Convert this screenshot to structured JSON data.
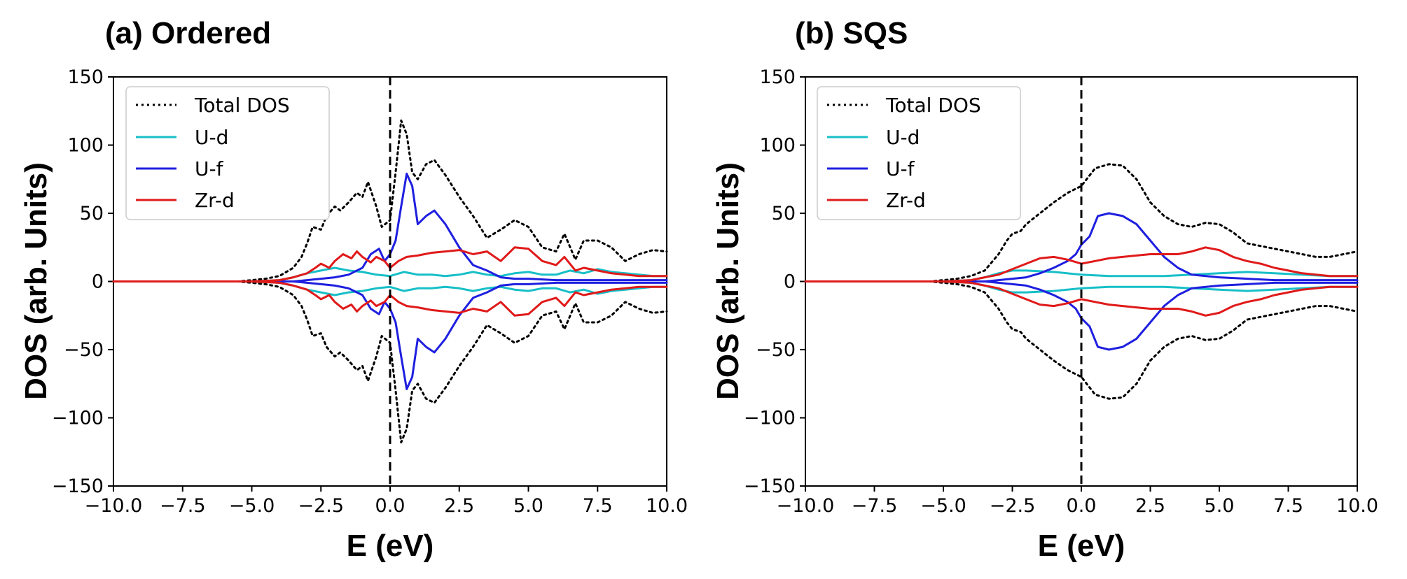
{
  "chart_data": [
    {
      "type": "line",
      "title": "(a) Ordered",
      "xlabel": "E (eV)",
      "ylabel": "DOS (arb. Units)",
      "xlim": [
        -10,
        10
      ],
      "ylim": [
        -150,
        150
      ],
      "xticks": [
        "−10.0",
        "−7.5",
        "−5.0",
        "−2.5",
        "0.0",
        "2.5",
        "5.0",
        "7.5",
        "10.0"
      ],
      "yticks": [
        "150",
        "100",
        "50",
        "0",
        "−50",
        "−100",
        "−150"
      ],
      "fermi_line_x": 0,
      "legend_position": "top-left",
      "grid": false,
      "series": [
        {
          "name": "Total DOS",
          "color": "#000000",
          "style": "dotted",
          "mirrored": true,
          "x": [
            -10,
            -5.5,
            -5,
            -4.5,
            -4,
            -3.5,
            -3.2,
            -3,
            -2.8,
            -2.5,
            -2.3,
            -2,
            -1.8,
            -1.5,
            -1.2,
            -1,
            -0.8,
            -0.5,
            -0.3,
            0,
            0.2,
            0.4,
            0.6,
            0.8,
            1,
            1.3,
            1.6,
            2,
            2.5,
            3,
            3.5,
            4,
            4.5,
            5,
            5.5,
            6,
            6.3,
            6.7,
            7,
            7.5,
            8,
            8.5,
            9,
            9.5,
            10
          ],
          "values": [
            0,
            0,
            1,
            2,
            4,
            10,
            18,
            28,
            40,
            38,
            48,
            55,
            52,
            58,
            65,
            62,
            73,
            55,
            40,
            45,
            80,
            118,
            108,
            80,
            75,
            86,
            89,
            78,
            62,
            48,
            32,
            38,
            45,
            40,
            25,
            22,
            35,
            16,
            30,
            30,
            25,
            15,
            20,
            23,
            22
          ]
        },
        {
          "name": "U-d",
          "color": "#17bfc7",
          "style": "solid",
          "mirrored": true,
          "x": [
            -10,
            -5,
            -4,
            -3.5,
            -3,
            -2.5,
            -2,
            -1.5,
            -1,
            -0.5,
            0,
            0.5,
            1,
            1.5,
            2,
            2.5,
            3,
            3.5,
            4,
            4.5,
            5,
            5.5,
            6,
            6.5,
            7,
            7.5,
            8,
            8.5,
            9,
            9.5,
            10
          ],
          "values": [
            0,
            0,
            1,
            3,
            6,
            8,
            10,
            8,
            7,
            5,
            4,
            7,
            5,
            5,
            4,
            5,
            7,
            5,
            4,
            6,
            7,
            5,
            5,
            8,
            6,
            9,
            7,
            6,
            5,
            4,
            4
          ]
        },
        {
          "name": "U-f",
          "color": "#1f1fe0",
          "style": "solid",
          "mirrored": true,
          "x": [
            -10,
            -5,
            -4,
            -3.5,
            -3,
            -2.5,
            -2,
            -1.5,
            -1,
            -0.7,
            -0.4,
            -0.2,
            0,
            0.2,
            0.4,
            0.6,
            0.8,
            1,
            1.3,
            1.6,
            2,
            2.5,
            3,
            3.5,
            4,
            4.5,
            5,
            6,
            7,
            8,
            9,
            10
          ],
          "values": [
            0,
            0,
            0,
            0,
            1,
            2,
            3,
            5,
            10,
            20,
            24,
            15,
            20,
            30,
            55,
            79,
            70,
            42,
            48,
            52,
            42,
            25,
            12,
            8,
            3,
            2,
            2,
            1,
            1,
            1,
            1,
            1
          ]
        },
        {
          "name": "Zr-d",
          "color": "#e01a1a",
          "style": "solid",
          "mirrored": true,
          "x": [
            -10,
            -5,
            -4,
            -3.5,
            -3,
            -2.7,
            -2.5,
            -2.2,
            -2,
            -1.7,
            -1.4,
            -1.2,
            -1,
            -0.7,
            -0.5,
            -0.2,
            0,
            0.3,
            0.6,
            1,
            1.5,
            2,
            2.5,
            3,
            3.5,
            4,
            4.5,
            5,
            5.5,
            6,
            6.3,
            6.7,
            7,
            7.5,
            8,
            8.5,
            9,
            10
          ],
          "values": [
            0,
            0,
            1,
            3,
            6,
            10,
            13,
            10,
            15,
            20,
            17,
            22,
            18,
            14,
            18,
            15,
            10,
            15,
            18,
            19,
            21,
            22,
            23,
            20,
            22,
            15,
            25,
            24,
            15,
            12,
            18,
            8,
            10,
            8,
            6,
            5,
            4,
            4
          ]
        }
      ]
    },
    {
      "type": "line",
      "title": "(b) SQS",
      "xlabel": "E (eV)",
      "ylabel": "DOS (arb. Units)",
      "xlim": [
        -10,
        10
      ],
      "ylim": [
        -150,
        150
      ],
      "xticks": [
        "−10.0",
        "−7.5",
        "−5.0",
        "−2.5",
        "0.0",
        "2.5",
        "5.0",
        "7.5",
        "10.0"
      ],
      "yticks": [
        "150",
        "100",
        "50",
        "0",
        "−50",
        "−100",
        "−150"
      ],
      "fermi_line_x": 0,
      "legend_position": "top-left",
      "grid": false,
      "series": [
        {
          "name": "Total DOS",
          "color": "#000000",
          "style": "dotted",
          "mirrored": true,
          "x": [
            -10,
            -5.5,
            -5,
            -4.5,
            -4,
            -3.5,
            -3,
            -2.7,
            -2.5,
            -2.2,
            -2,
            -1.5,
            -1,
            -0.5,
            0,
            0.5,
            1,
            1.5,
            2,
            2.5,
            3,
            3.5,
            4,
            4.5,
            5,
            5.5,
            6,
            6.5,
            7,
            7.5,
            8,
            8.5,
            9,
            9.5,
            10
          ],
          "values": [
            0,
            0,
            1,
            2,
            4,
            8,
            20,
            30,
            35,
            37,
            42,
            50,
            58,
            65,
            70,
            83,
            86,
            85,
            75,
            58,
            48,
            42,
            40,
            43,
            42,
            36,
            28,
            26,
            24,
            22,
            20,
            18,
            18,
            20,
            22
          ]
        },
        {
          "name": "U-d",
          "color": "#17bfc7",
          "style": "solid",
          "mirrored": true,
          "x": [
            -10,
            -5,
            -4,
            -3.5,
            -3,
            -2.5,
            -2,
            -1,
            0,
            1,
            2,
            3,
            4,
            5,
            6,
            7,
            8,
            9,
            10
          ],
          "values": [
            0,
            0,
            1,
            3,
            6,
            8,
            8,
            7,
            5,
            4,
            4,
            4,
            5,
            6,
            7,
            6,
            5,
            4,
            4
          ]
        },
        {
          "name": "U-f",
          "color": "#1f1fe0",
          "style": "solid",
          "mirrored": true,
          "x": [
            -10,
            -5,
            -4,
            -3.5,
            -3,
            -2.5,
            -2,
            -1.5,
            -1,
            -0.5,
            -0.2,
            0,
            0.3,
            0.6,
            1,
            1.5,
            2,
            2.5,
            3,
            3.5,
            4,
            5,
            6,
            7,
            8,
            9,
            10
          ],
          "values": [
            0,
            0,
            0,
            0,
            1,
            2,
            3,
            6,
            10,
            15,
            20,
            27,
            33,
            48,
            50,
            48,
            42,
            30,
            18,
            10,
            5,
            3,
            2,
            1,
            1,
            1,
            1
          ]
        },
        {
          "name": "Zr-d",
          "color": "#e01a1a",
          "style": "solid",
          "mirrored": true,
          "x": [
            -10,
            -5,
            -4,
            -3.5,
            -3,
            -2.5,
            -2,
            -1.5,
            -1,
            -0.5,
            0,
            0.5,
            1,
            1.5,
            2,
            2.5,
            3,
            3.5,
            4,
            4.5,
            5,
            5.5,
            6,
            6.5,
            7,
            7.5,
            8,
            8.5,
            9,
            10
          ],
          "values": [
            0,
            0,
            1,
            3,
            5,
            9,
            13,
            17,
            18,
            16,
            13,
            15,
            17,
            18,
            19,
            20,
            20,
            20,
            22,
            25,
            23,
            18,
            15,
            13,
            10,
            8,
            6,
            5,
            4,
            4
          ]
        }
      ]
    }
  ]
}
